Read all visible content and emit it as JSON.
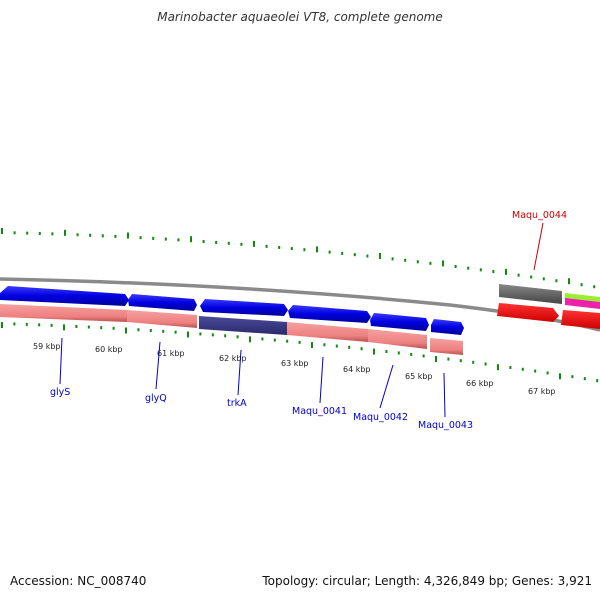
{
  "title": "Marinobacter aquaeolei VT8, complete genome",
  "footer": {
    "accession": "Accession: NC_008740",
    "summary": "Topology: circular; Length: 4,326,849 bp; Genes: 3,921"
  },
  "scale_labels": [
    "59 kbp",
    "60 kbp",
    "61 kbp",
    "62 kbp",
    "63 kbp",
    "64 kbp",
    "65 kbp",
    "66 kbp",
    "67 kbp"
  ],
  "genes": [
    {
      "name": "glyS",
      "strand": "forward",
      "color": "#0000cc"
    },
    {
      "name": "glyQ",
      "strand": "forward",
      "color": "#0000cc"
    },
    {
      "name": "trkA",
      "strand": "forward",
      "color": "#0000cc"
    },
    {
      "name": "Maqu_0041",
      "strand": "forward",
      "color": "#0000cc"
    },
    {
      "name": "Maqu_0042",
      "strand": "forward",
      "color": "#0000cc"
    },
    {
      "name": "Maqu_0043",
      "strand": "forward",
      "color": "#0000cc"
    },
    {
      "name": "Maqu_0044",
      "strand": "reverse",
      "color": "#cc0000"
    }
  ],
  "colors": {
    "forward_gene": "#0a0ae6",
    "reverse_gene": "#ee0000",
    "cds_track": "#f08080",
    "highlight_track": "#3a3a8a",
    "grey_block": "#555555",
    "green_block": "#99ee33",
    "magenta_block": "#ee22aa",
    "tick": "#118811",
    "backbone": "#888888"
  }
}
